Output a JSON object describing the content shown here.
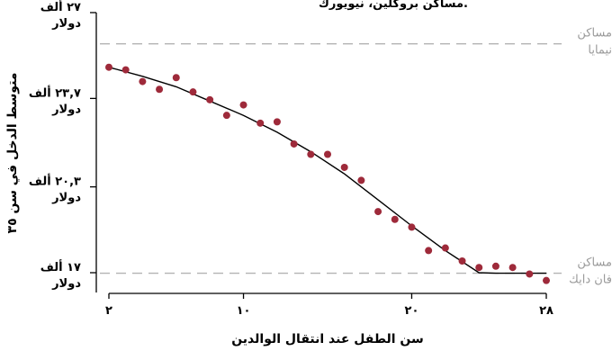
{
  "chart_data": {
    "type": "scatter",
    "title": "مساكن بروكلين، نيويورك.",
    "xlabel": "سن الطفل عند انتقال الوالدين",
    "ylabel": "متوسط الدخل في سن ٣٥",
    "xlim": [
      2,
      28
    ],
    "ylim": [
      16.4,
      27
    ],
    "x_ticks": [
      {
        "value": 2,
        "label": "٢"
      },
      {
        "value": 10,
        "label": "١٠"
      },
      {
        "value": 20,
        "label": "٢٠"
      },
      {
        "value": 28,
        "label": "٢٨"
      }
    ],
    "y_ticks": [
      {
        "value": 17,
        "label_line1": "١٧ ألف",
        "label_line2": "دولار"
      },
      {
        "value": 20.3,
        "label_line1": "٢٠,٣ ألف",
        "label_line2": "دولار"
      },
      {
        "value": 23.7,
        "label_line1": "٢٣,٧ ألف",
        "label_line2": "دولار"
      },
      {
        "value": 27,
        "label_line1": "٢٧ ألف",
        "label_line2": "دولار"
      }
    ],
    "reference_lines": [
      {
        "name": "مساكن نيمايا",
        "label_line1": "مساكن",
        "label_line2": "نيمايا",
        "y": 25.8
      },
      {
        "name": "مساكن فان دايك",
        "label_line1": "مساكن",
        "label_line2": "فان دايك",
        "y": 16.98
      }
    ],
    "points": [
      {
        "x": 2,
        "y": 24.9
      },
      {
        "x": 3,
        "y": 24.8
      },
      {
        "x": 4,
        "y": 24.35
      },
      {
        "x": 5,
        "y": 24.05
      },
      {
        "x": 6,
        "y": 24.5
      },
      {
        "x": 7,
        "y": 23.95
      },
      {
        "x": 8,
        "y": 23.65
      },
      {
        "x": 9,
        "y": 23.05
      },
      {
        "x": 10,
        "y": 23.45
      },
      {
        "x": 11,
        "y": 22.75
      },
      {
        "x": 12,
        "y": 22.8
      },
      {
        "x": 13,
        "y": 21.95
      },
      {
        "x": 14,
        "y": 21.55
      },
      {
        "x": 15,
        "y": 21.55
      },
      {
        "x": 16,
        "y": 21.05
      },
      {
        "x": 17,
        "y": 20.55
      },
      {
        "x": 18,
        "y": 19.35
      },
      {
        "x": 19,
        "y": 19.05
      },
      {
        "x": 20,
        "y": 18.75
      },
      {
        "x": 21,
        "y": 17.85
      },
      {
        "x": 22,
        "y": 17.95
      },
      {
        "x": 23,
        "y": 17.45
      },
      {
        "x": 24,
        "y": 17.2
      },
      {
        "x": 25,
        "y": 17.25
      },
      {
        "x": 26,
        "y": 17.2
      },
      {
        "x": 27,
        "y": 16.95
      },
      {
        "x": 28,
        "y": 16.7
      }
    ],
    "fit_line": [
      {
        "x": 2,
        "y": 24.9
      },
      {
        "x": 4,
        "y": 24.55
      },
      {
        "x": 6,
        "y": 24.15
      },
      {
        "x": 8,
        "y": 23.6
      },
      {
        "x": 10,
        "y": 23.05
      },
      {
        "x": 12,
        "y": 22.4
      },
      {
        "x": 14,
        "y": 21.65
      },
      {
        "x": 16,
        "y": 20.8
      },
      {
        "x": 18,
        "y": 19.8
      },
      {
        "x": 20,
        "y": 18.8
      },
      {
        "x": 22,
        "y": 17.85
      },
      {
        "x": 24,
        "y": 17.0
      },
      {
        "x": 25,
        "y": 16.98
      },
      {
        "x": 28,
        "y": 16.98
      }
    ],
    "colors": {
      "point": "#9e2a3a",
      "fit_line": "#000000",
      "reference_line": "#b3b3b3",
      "reference_label": "#9a9a9a"
    },
    "grid": false,
    "legend": "none"
  }
}
